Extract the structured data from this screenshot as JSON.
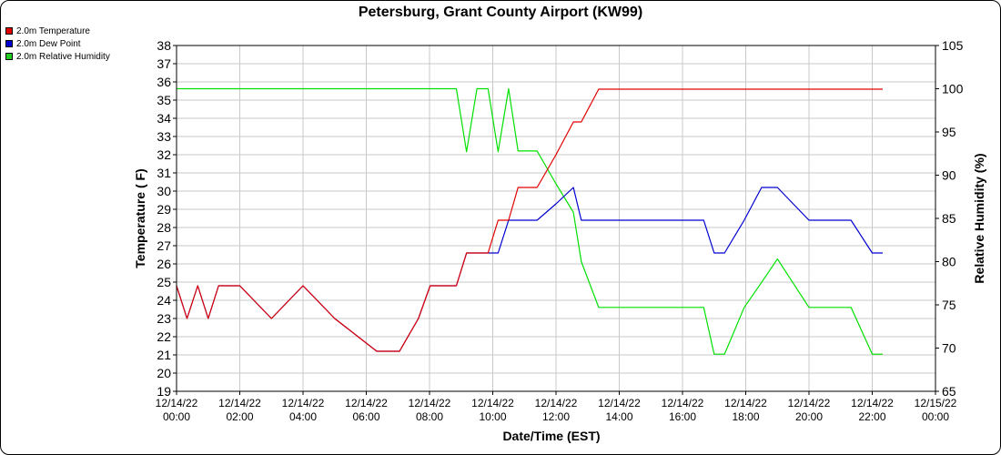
{
  "chart_data": {
    "type": "line",
    "title": "Petersburg, Grant County Airport (KW99)",
    "xlabel": "Date/Time (EST)",
    "ylabel": "Temperature ( F)",
    "y2label": "Relative Humidity (%)",
    "ylim": [
      19,
      38
    ],
    "y2lim": [
      65,
      105
    ],
    "xlim_hours": [
      0,
      24
    ],
    "x_ticks": [
      {
        "date": "12/14/22",
        "time": "00:00"
      },
      {
        "date": "12/14/22",
        "time": "02:00"
      },
      {
        "date": "12/14/22",
        "time": "04:00"
      },
      {
        "date": "12/14/22",
        "time": "06:00"
      },
      {
        "date": "12/14/22",
        "time": "08:00"
      },
      {
        "date": "12/14/22",
        "time": "10:00"
      },
      {
        "date": "12/14/22",
        "time": "12:00"
      },
      {
        "date": "12/14/22",
        "time": "14:00"
      },
      {
        "date": "12/14/22",
        "time": "16:00"
      },
      {
        "date": "12/14/22",
        "time": "18:00"
      },
      {
        "date": "12/14/22",
        "time": "20:00"
      },
      {
        "date": "12/14/22",
        "time": "22:00"
      },
      {
        "date": "12/15/22",
        "time": "00:00"
      }
    ],
    "y_ticks": [
      19,
      20,
      21,
      22,
      23,
      24,
      25,
      26,
      27,
      28,
      29,
      30,
      31,
      32,
      33,
      34,
      35,
      36,
      37,
      38
    ],
    "y2_ticks": [
      65,
      70,
      75,
      80,
      85,
      90,
      95,
      100,
      105
    ],
    "grid": true,
    "legend_position": "top-left",
    "series": [
      {
        "name": "2.0m Temperature",
        "color": "#e00000",
        "axis": "left",
        "x": [
          0,
          0.33,
          0.67,
          1,
          1.33,
          2,
          3,
          4,
          5,
          6.33,
          7.05,
          7.65,
          8.02,
          8.85,
          9.17,
          9.5,
          9.85,
          10.17,
          10.5,
          10.8,
          11.1,
          11.4,
          12.0,
          12.55,
          12.8,
          13.35,
          14.0,
          20.0,
          22.33
        ],
        "values": [
          24.8,
          23.0,
          24.8,
          23.0,
          24.8,
          24.8,
          23.0,
          24.8,
          23.0,
          21.2,
          21.2,
          23.0,
          24.8,
          24.8,
          26.6,
          26.6,
          26.6,
          28.4,
          28.4,
          30.2,
          30.2,
          30.2,
          32.0,
          33.8,
          33.8,
          35.6,
          35.6,
          35.6,
          35.6
        ]
      },
      {
        "name": "2.0m Dew Point",
        "color": "#0000d0",
        "axis": "left",
        "x": [
          0,
          0.33,
          0.67,
          1,
          1.33,
          2,
          3,
          4,
          5,
          6.33,
          7.05,
          7.65,
          8.02,
          8.85,
          9.17,
          9.5,
          9.85,
          10.17,
          10.5,
          10.8,
          11.1,
          11.4,
          12.0,
          12.55,
          12.8,
          13.35,
          14.0,
          16.0,
          16.67,
          17.0,
          17.33,
          17.95,
          18.5,
          19.0,
          20.0,
          20.5,
          21.33,
          22.0,
          22.33
        ],
        "values": [
          24.8,
          23.0,
          24.8,
          23.0,
          24.8,
          24.8,
          23.0,
          24.8,
          23.0,
          21.2,
          21.2,
          23.0,
          24.8,
          24.8,
          26.6,
          26.6,
          26.6,
          26.6,
          28.4,
          28.4,
          28.4,
          28.4,
          29.3,
          30.2,
          28.4,
          28.4,
          28.4,
          28.4,
          28.4,
          26.6,
          26.6,
          28.4,
          30.2,
          30.2,
          28.4,
          28.4,
          28.4,
          26.6,
          26.6
        ]
      },
      {
        "name": "2.0m Relative Humidity",
        "color": "#00e000",
        "axis": "right",
        "x": [
          0,
          8.85,
          9.17,
          9.5,
          9.85,
          10.17,
          10.5,
          10.8,
          11.4,
          12.0,
          12.55,
          12.8,
          13.35,
          14.0,
          16.0,
          16.67,
          17.0,
          17.33,
          17.95,
          18.5,
          19.0,
          20.0,
          21.33,
          22.0,
          22.33
        ],
        "values": [
          100,
          100,
          92.7,
          100,
          100,
          92.7,
          100,
          92.8,
          92.8,
          89.0,
          85.7,
          80.0,
          74.7,
          74.7,
          74.7,
          74.7,
          69.3,
          69.3,
          74.7,
          77.6,
          80.3,
          74.7,
          74.7,
          69.3,
          69.3
        ]
      }
    ]
  }
}
